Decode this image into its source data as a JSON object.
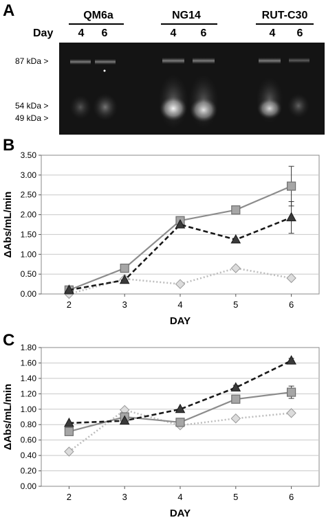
{
  "figure": {
    "panel_a": {
      "letter": "A",
      "day_label": "Day",
      "groups": [
        {
          "name": "QM6a",
          "days": [
            "4",
            "6"
          ]
        },
        {
          "name": "NG14",
          "days": [
            "4",
            "6"
          ]
        },
        {
          "name": "RUT-C30",
          "days": [
            "4",
            "6"
          ]
        }
      ],
      "markers": [
        "87 kDa >",
        "54 kDa >",
        "49 kDa >"
      ]
    },
    "panel_b_letter": "B",
    "panel_c_letter": "C"
  },
  "chart_data": [
    {
      "type": "line",
      "panel": "B",
      "title": "",
      "xlabel": "DAY",
      "ylabel": "ΔAbs/mL/min",
      "x": [
        2,
        3,
        4,
        5,
        6
      ],
      "ylim": [
        0,
        3.5
      ],
      "yticks": [
        "0.00",
        "0.50",
        "1.00",
        "1.50",
        "2.00",
        "2.50",
        "3.00",
        "3.50"
      ],
      "grid": true,
      "legend": "none",
      "series": [
        {
          "marker": "square",
          "color": "#8c8c8c",
          "dash": "solid",
          "values": [
            0.1,
            0.65,
            1.85,
            2.12,
            2.72
          ],
          "errors": [
            0.02,
            0.03,
            0.08,
            0.05,
            0.5
          ]
        },
        {
          "marker": "triangle",
          "color": "#1a1a1a",
          "dash": "dashed",
          "values": [
            0.1,
            0.35,
            1.75,
            1.37,
            1.93
          ],
          "errors": [
            0.02,
            0.03,
            0.05,
            0.05,
            0.4
          ]
        },
        {
          "marker": "diamond",
          "color": "#bdbdbd",
          "dash": "dotted",
          "values": [
            0.0,
            0.38,
            0.25,
            0.65,
            0.4
          ],
          "errors": [
            0.01,
            0.02,
            0.03,
            0.03,
            0.04
          ]
        }
      ]
    },
    {
      "type": "line",
      "panel": "C",
      "title": "",
      "xlabel": "DAY",
      "ylabel": "ΔAbs/mL/min",
      "x": [
        2,
        3,
        4,
        5,
        6
      ],
      "ylim": [
        0,
        1.8
      ],
      "yticks": [
        "0.00",
        "0.20",
        "0.40",
        "0.60",
        "0.80",
        "1.00",
        "1.20",
        "1.40",
        "1.60",
        "1.80"
      ],
      "grid": true,
      "legend": "none",
      "series": [
        {
          "marker": "square",
          "color": "#8c8c8c",
          "dash": "solid",
          "values": [
            0.71,
            0.9,
            0.83,
            1.13,
            1.22
          ],
          "errors": [
            0.02,
            0.03,
            0.03,
            0.04,
            0.08
          ]
        },
        {
          "marker": "triangle",
          "color": "#1a1a1a",
          "dash": "dashed",
          "values": [
            0.82,
            0.85,
            1.0,
            1.28,
            1.63
          ],
          "errors": [
            0.02,
            0.02,
            0.02,
            0.03,
            0.03
          ]
        },
        {
          "marker": "diamond",
          "color": "#bdbdbd",
          "dash": "dotted",
          "values": [
            0.45,
            0.99,
            0.79,
            0.88,
            0.95
          ],
          "errors": [
            0.01,
            0.02,
            0.02,
            0.02,
            0.02
          ]
        }
      ]
    }
  ]
}
